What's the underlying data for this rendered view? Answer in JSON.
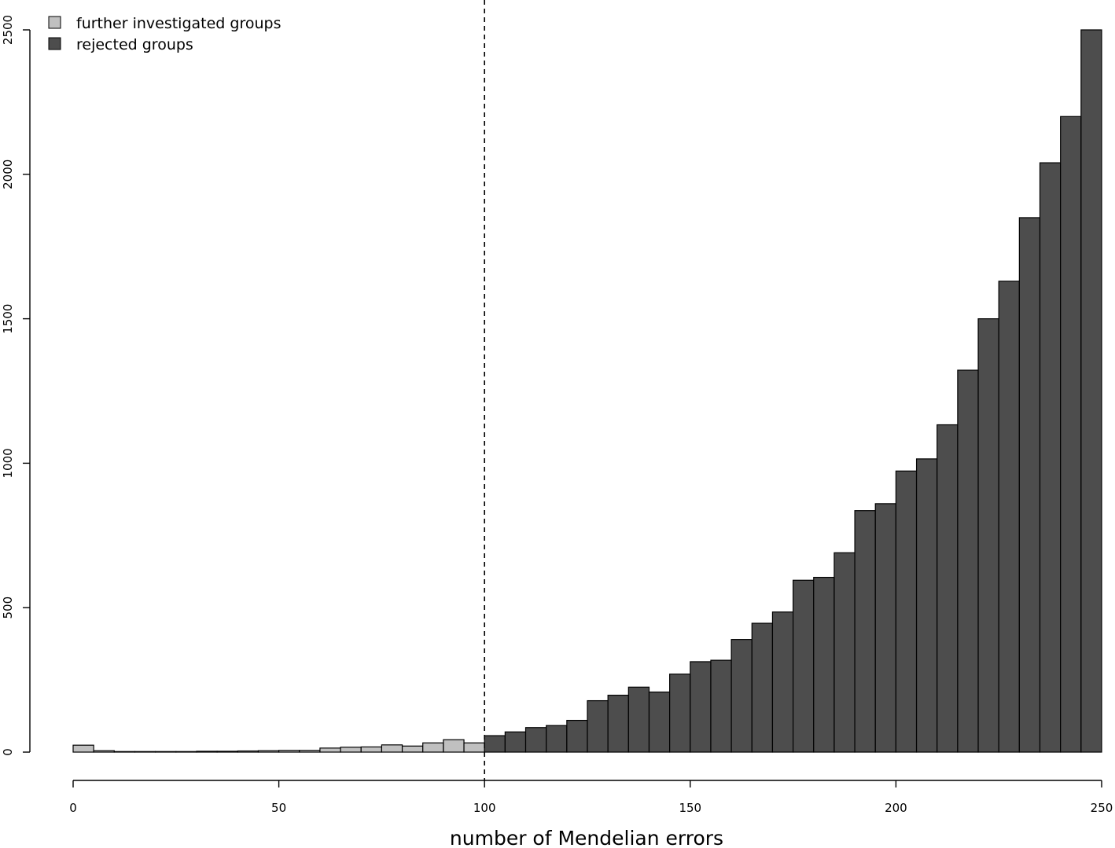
{
  "chart_data": {
    "type": "bar",
    "subtype": "histogram",
    "title": "",
    "xlabel": "number of Mendelian errors",
    "ylabel": "",
    "xlim": [
      0,
      250
    ],
    "ylim": [
      0,
      2500
    ],
    "bin_width": 5,
    "x_ticks": [
      "0",
      "50",
      "100",
      "150",
      "200",
      "250"
    ],
    "y_ticks": [
      "0",
      "500",
      "1000",
      "1500",
      "2000",
      "2500"
    ],
    "threshold": {
      "x": 100,
      "style": "dashed"
    },
    "legend": {
      "position": "top-left",
      "items": [
        {
          "label": "further investigated groups",
          "color": "#c0c0c0"
        },
        {
          "label": "rejected groups",
          "color": "#4d4d4d"
        }
      ]
    },
    "grid": false,
    "series": [
      {
        "name": "further investigated groups",
        "color": "#c0c0c0",
        "bin_starts": [
          0,
          5,
          10,
          15,
          20,
          25,
          30,
          35,
          40,
          45,
          50,
          55,
          60,
          65,
          70,
          75,
          80,
          85,
          90,
          95
        ],
        "values": [
          24,
          5,
          2,
          2,
          2,
          2,
          3,
          3,
          4,
          5,
          6,
          6,
          14,
          17,
          18,
          25,
          21,
          32,
          43,
          32
        ]
      },
      {
        "name": "rejected groups",
        "color": "#4d4d4d",
        "bin_starts": [
          100,
          105,
          110,
          115,
          120,
          125,
          130,
          135,
          140,
          145,
          150,
          155,
          160,
          165,
          170,
          175,
          180,
          185,
          190,
          195,
          200,
          205,
          210,
          215,
          220,
          225,
          230,
          235,
          240,
          245
        ],
        "values": [
          57,
          70,
          85,
          92,
          110,
          178,
          197,
          225,
          208,
          270,
          313,
          318,
          390,
          446,
          485,
          595,
          605,
          690,
          836,
          860,
          973,
          1015,
          1133,
          1322,
          1500,
          1630,
          1850,
          2040,
          2200,
          2500
        ]
      }
    ]
  }
}
